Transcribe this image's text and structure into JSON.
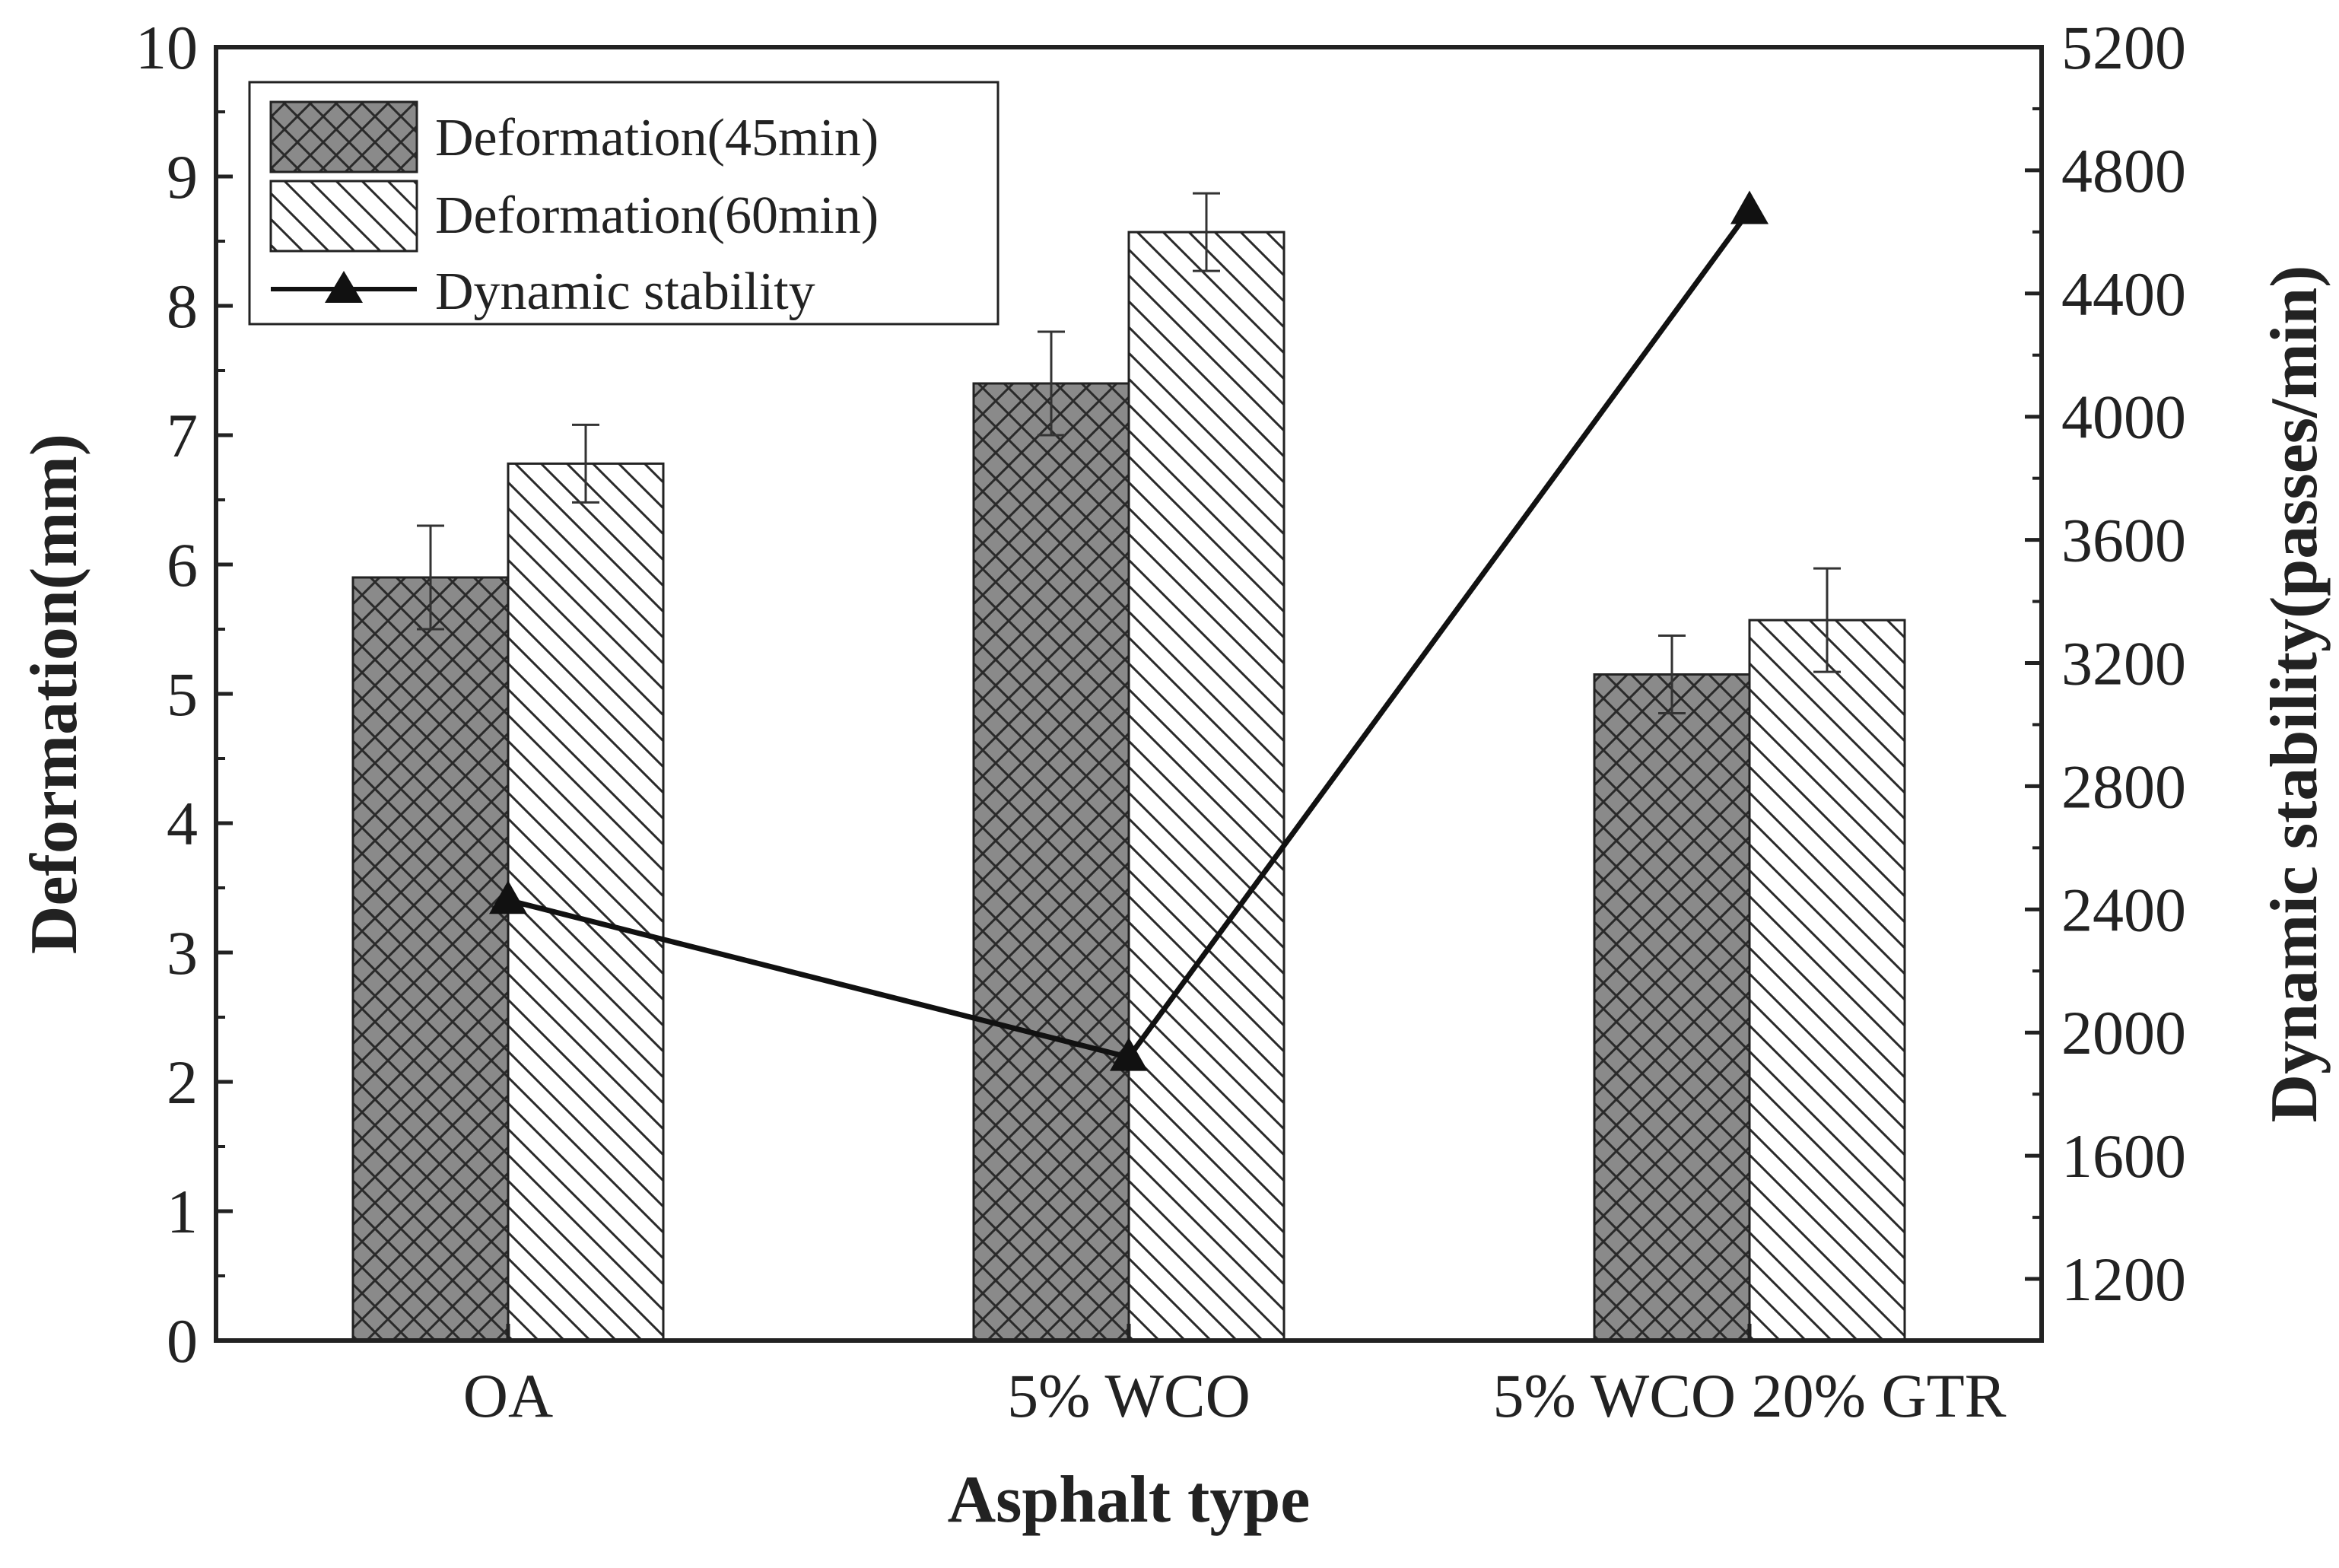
{
  "chart_data": {
    "type": "bar",
    "xlabel": "Asphalt type",
    "ylabel": "Deformation(mm)",
    "y2label": "Dynamic stability(passes/min)",
    "categories": [
      "OA",
      "5% WCO",
      "5% WCO 20% GTR"
    ],
    "ylim": [
      0,
      10
    ],
    "y2lim": [
      1000,
      5200
    ],
    "yticks": [
      "0",
      "1",
      "2",
      "3",
      "4",
      "5",
      "6",
      "7",
      "8",
      "9",
      "10"
    ],
    "y2ticks": [
      "1200",
      "1600",
      "2000",
      "2400",
      "2800",
      "3200",
      "3600",
      "4000",
      "4400",
      "4800",
      "5200"
    ],
    "series": [
      {
        "name": "Deformation(45min)",
        "kind": "bar",
        "pattern": "crosshatch",
        "color": "#8a8a8a",
        "values": [
          5.9,
          7.4,
          5.15
        ],
        "errors": [
          0.4,
          0.4,
          0.3
        ]
      },
      {
        "name": "Deformation(60min)",
        "kind": "bar",
        "pattern": "diagonal",
        "color": "#ffffff",
        "values": [
          6.78,
          8.57,
          5.57
        ],
        "errors": [
          0.3,
          0.3,
          0.4
        ]
      },
      {
        "name": "Dynamic stability",
        "kind": "line",
        "marker": "triangle",
        "axis": "right",
        "color": "#111111",
        "values": [
          2430,
          1920,
          4670
        ]
      }
    ],
    "legend_position": "top-left",
    "grid": false
  }
}
